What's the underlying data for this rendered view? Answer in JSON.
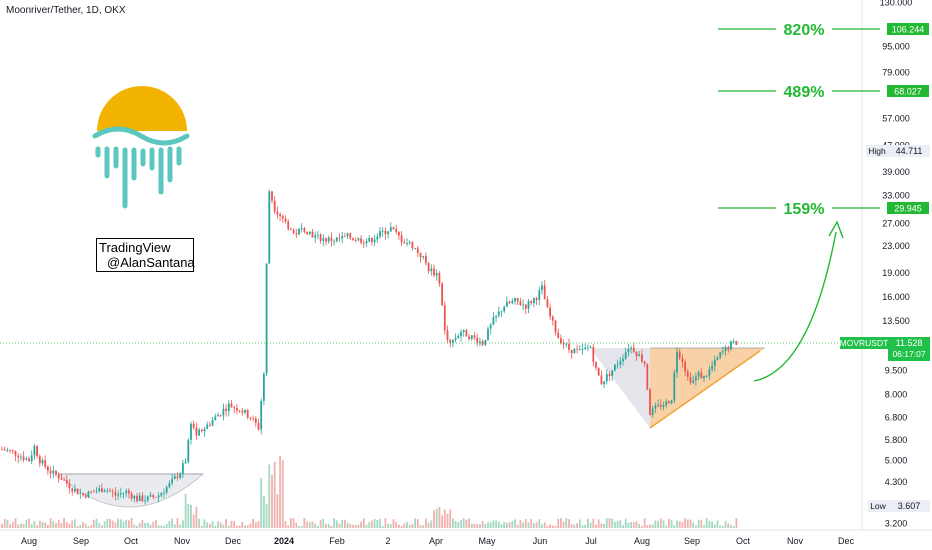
{
  "title": "Moonriver/Tether, 1D, OKX",
  "brand": {
    "line1": "TradingView",
    "line2": "@AlanSantana"
  },
  "chart_data": {
    "type": "candlestick",
    "symbol": "MOVRUSDT",
    "exchange": "OKX",
    "interval": "1D",
    "x_ticks": [
      "Aug",
      "Sep",
      "Oct",
      "Nov",
      "Dec",
      "2024",
      "Feb",
      "2",
      "Apr",
      "May",
      "Jun",
      "Jul",
      "Aug",
      "Sep",
      "Oct",
      "Nov",
      "Dec"
    ],
    "y_ticks": [
      130.0,
      95.0,
      79.0,
      57.0,
      47.0,
      39.0,
      33.0,
      27.0,
      23.0,
      19.0,
      16.0,
      13.5,
      9.5,
      8.0,
      6.8,
      5.8,
      5.0,
      4.3,
      3.2
    ],
    "y_scale": "log",
    "last_price": {
      "label": "MOVRUSDT",
      "value": "11.528",
      "countdown": "06:17:07"
    },
    "high": {
      "label": "High",
      "value": "44.711"
    },
    "low": {
      "label": "Low",
      "value": "3.607"
    },
    "targets": [
      {
        "percent": "820%",
        "price": "106.244"
      },
      {
        "percent": "489%",
        "price": "68.027"
      },
      {
        "percent": "159%",
        "price": "29.945"
      }
    ],
    "price_path": [
      {
        "t": 0,
        "p": 5.4
      },
      {
        "t": 4,
        "p": 5.3
      },
      {
        "t": 8,
        "p": 5.1
      },
      {
        "t": 10,
        "p": 5.0
      },
      {
        "t": 12,
        "p": 5.5
      },
      {
        "t": 14,
        "p": 5.0
      },
      {
        "t": 18,
        "p": 4.6
      },
      {
        "t": 22,
        "p": 4.4
      },
      {
        "t": 26,
        "p": 4.1
      },
      {
        "t": 30,
        "p": 3.9
      },
      {
        "t": 34,
        "p": 4.0
      },
      {
        "t": 38,
        "p": 4.1
      },
      {
        "t": 42,
        "p": 3.9
      },
      {
        "t": 46,
        "p": 4.0
      },
      {
        "t": 50,
        "p": 3.8
      },
      {
        "t": 54,
        "p": 3.8
      },
      {
        "t": 58,
        "p": 3.9
      },
      {
        "t": 62,
        "p": 4.2
      },
      {
        "t": 66,
        "p": 4.6
      },
      {
        "t": 68,
        "p": 5.0
      },
      {
        "t": 70,
        "p": 6.6
      },
      {
        "t": 72,
        "p": 6.0
      },
      {
        "t": 76,
        "p": 6.4
      },
      {
        "t": 80,
        "p": 6.9
      },
      {
        "t": 84,
        "p": 7.4
      },
      {
        "t": 88,
        "p": 7.2
      },
      {
        "t": 92,
        "p": 6.8
      },
      {
        "t": 95,
        "p": 6.3
      },
      {
        "t": 97,
        "p": 9.3
      },
      {
        "t": 98,
        "p": 20.0
      },
      {
        "t": 99,
        "p": 34.0
      },
      {
        "t": 101,
        "p": 30.0
      },
      {
        "t": 104,
        "p": 28.0
      },
      {
        "t": 108,
        "p": 25.0
      },
      {
        "t": 112,
        "p": 26.0
      },
      {
        "t": 116,
        "p": 24.5
      },
      {
        "t": 120,
        "p": 24.0
      },
      {
        "t": 124,
        "p": 24.0
      },
      {
        "t": 128,
        "p": 24.5
      },
      {
        "t": 132,
        "p": 24.0
      },
      {
        "t": 136,
        "p": 23.8
      },
      {
        "t": 140,
        "p": 25.0
      },
      {
        "t": 144,
        "p": 26.0
      },
      {
        "t": 148,
        "p": 24.0
      },
      {
        "t": 152,
        "p": 23.0
      },
      {
        "t": 156,
        "p": 21.0
      },
      {
        "t": 158,
        "p": 19.5
      },
      {
        "t": 160,
        "p": 19.0
      },
      {
        "t": 162,
        "p": 18.0
      },
      {
        "t": 164,
        "p": 12.5
      },
      {
        "t": 166,
        "p": 11.5
      },
      {
        "t": 170,
        "p": 12.5
      },
      {
        "t": 174,
        "p": 12.0
      },
      {
        "t": 178,
        "p": 11.5
      },
      {
        "t": 182,
        "p": 13.5
      },
      {
        "t": 186,
        "p": 15.0
      },
      {
        "t": 190,
        "p": 15.5
      },
      {
        "t": 194,
        "p": 15.0
      },
      {
        "t": 198,
        "p": 16.0
      },
      {
        "t": 200,
        "p": 17.0
      },
      {
        "t": 202,
        "p": 14.5
      },
      {
        "t": 206,
        "p": 12.0
      },
      {
        "t": 210,
        "p": 11.0
      },
      {
        "t": 214,
        "p": 10.8
      },
      {
        "t": 218,
        "p": 11.2
      },
      {
        "t": 220,
        "p": 9.5
      },
      {
        "t": 222,
        "p": 8.7
      },
      {
        "t": 226,
        "p": 9.5
      },
      {
        "t": 230,
        "p": 10.5
      },
      {
        "t": 232,
        "p": 11.2
      },
      {
        "t": 234,
        "p": 11.0
      },
      {
        "t": 236,
        "p": 10.5
      },
      {
        "t": 238,
        "p": 10.0
      },
      {
        "t": 240,
        "p": 7.0
      },
      {
        "t": 242,
        "p": 7.2
      },
      {
        "t": 244,
        "p": 7.4
      },
      {
        "t": 246,
        "p": 7.5
      },
      {
        "t": 248,
        "p": 7.8
      },
      {
        "t": 250,
        "p": 11.0
      },
      {
        "t": 252,
        "p": 10.2
      },
      {
        "t": 254,
        "p": 9.0
      },
      {
        "t": 256,
        "p": 8.8
      },
      {
        "t": 258,
        "p": 9.2
      },
      {
        "t": 260,
        "p": 9.0
      },
      {
        "t": 262,
        "p": 9.5
      },
      {
        "t": 264,
        "p": 10.0
      },
      {
        "t": 266,
        "p": 10.6
      },
      {
        "t": 268,
        "p": 11.0
      },
      {
        "t": 270,
        "p": 11.4
      },
      {
        "t": 272,
        "p": 11.528
      }
    ]
  },
  "colors": {
    "up": "#26a69a",
    "down": "#ef5350",
    "target": "#22b833",
    "triangle_fill": "#f6c18a",
    "triangle_edge": "#f0a030",
    "dark_triangle": "#c9cbd3",
    "logo_sun": "#f2b200",
    "logo_waves": "#5cc6c0",
    "price_line": "#21c04a"
  }
}
